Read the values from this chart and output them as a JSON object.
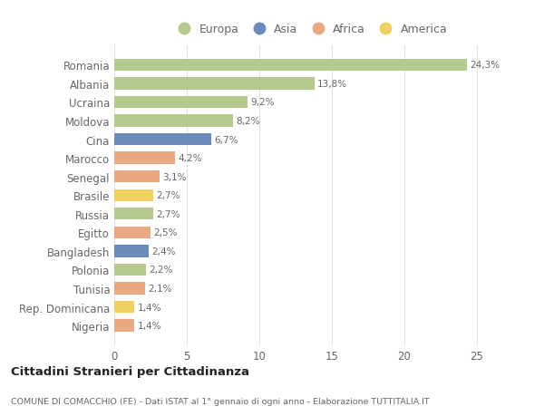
{
  "categories": [
    "Romania",
    "Albania",
    "Ucraina",
    "Moldova",
    "Cina",
    "Marocco",
    "Senegal",
    "Brasile",
    "Russia",
    "Egitto",
    "Bangladesh",
    "Polonia",
    "Tunisia",
    "Rep. Dominicana",
    "Nigeria"
  ],
  "values": [
    24.3,
    13.8,
    9.2,
    8.2,
    6.7,
    4.2,
    3.1,
    2.7,
    2.7,
    2.5,
    2.4,
    2.2,
    2.1,
    1.4,
    1.4
  ],
  "labels": [
    "24,3%",
    "13,8%",
    "9,2%",
    "8,2%",
    "6,7%",
    "4,2%",
    "3,1%",
    "2,7%",
    "2,7%",
    "2,5%",
    "2,4%",
    "2,2%",
    "2,1%",
    "1,4%",
    "1,4%"
  ],
  "continent": [
    "Europa",
    "Europa",
    "Europa",
    "Europa",
    "Asia",
    "Africa",
    "Africa",
    "America",
    "Europa",
    "Africa",
    "Asia",
    "Europa",
    "Africa",
    "America",
    "Africa"
  ],
  "colors": {
    "Europa": "#b5c98e",
    "Asia": "#6b8cba",
    "Africa": "#e8a882",
    "America": "#f0d060"
  },
  "legend_order": [
    "Europa",
    "Asia",
    "Africa",
    "America"
  ],
  "legend_colors": {
    "Europa": "#b5c98e",
    "Asia": "#6b8cba",
    "Africa": "#e8a882",
    "America": "#f0d060"
  },
  "xlim": [
    0,
    27
  ],
  "xticks": [
    0,
    5,
    10,
    15,
    20,
    25
  ],
  "title": "Cittadini Stranieri per Cittadinanza",
  "subtitle": "COMUNE DI COMACCHIO (FE) - Dati ISTAT al 1° gennaio di ogni anno - Elaborazione TUTTITALIA.IT",
  "background_color": "#ffffff",
  "bar_height": 0.65,
  "grid_color": "#e0e0e0",
  "text_color": "#666666",
  "title_color": "#222222"
}
